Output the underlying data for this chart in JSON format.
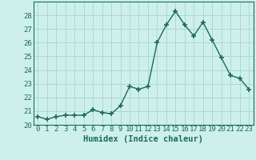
{
  "x": [
    0,
    1,
    2,
    3,
    4,
    5,
    6,
    7,
    8,
    9,
    10,
    11,
    12,
    13,
    14,
    15,
    16,
    17,
    18,
    19,
    20,
    21,
    22,
    23
  ],
  "y": [
    20.6,
    20.4,
    20.6,
    20.7,
    20.7,
    20.7,
    21.1,
    20.9,
    20.8,
    21.4,
    22.8,
    22.6,
    22.8,
    26.0,
    27.3,
    28.3,
    27.3,
    26.5,
    27.5,
    26.2,
    24.9,
    23.6,
    23.4,
    22.6
  ],
  "line_color": "#1a6b5a",
  "marker": "+",
  "marker_size": 4,
  "marker_lw": 1.2,
  "bg_color": "#cef0ea",
  "grid_color": "#aed8d0",
  "xlabel": "Humidex (Indice chaleur)",
  "xlim": [
    -0.5,
    23.5
  ],
  "ylim": [
    20,
    29
  ],
  "yticks": [
    20,
    21,
    22,
    23,
    24,
    25,
    26,
    27,
    28
  ],
  "xticks": [
    0,
    1,
    2,
    3,
    4,
    5,
    6,
    7,
    8,
    9,
    10,
    11,
    12,
    13,
    14,
    15,
    16,
    17,
    18,
    19,
    20,
    21,
    22,
    23
  ],
  "xlabel_fontsize": 7.5,
  "tick_fontsize": 6.5,
  "tick_color": "#1a6b5a",
  "spine_color": "#1a6b5a",
  "line_width": 1.0
}
